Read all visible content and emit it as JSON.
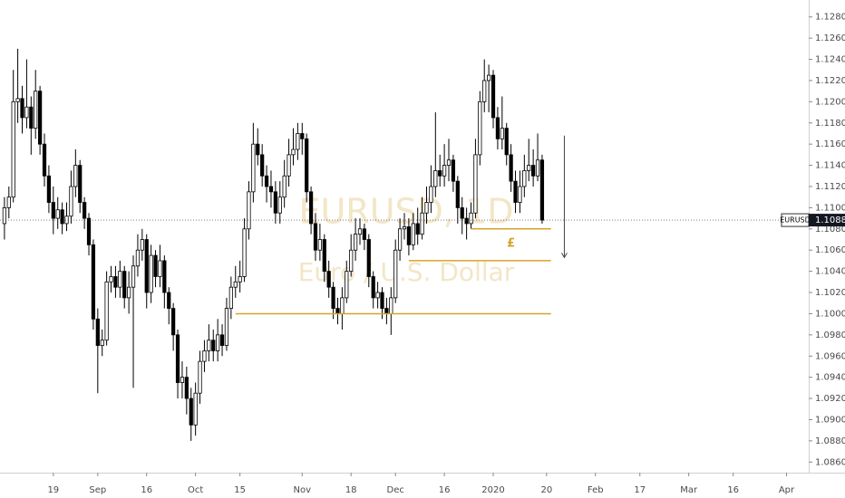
{
  "chart_data": {
    "type": "candlestick",
    "title": "EURUSD, 1D",
    "subtitle": "Euro / U.S. Dollar",
    "symbol": "EURUSD",
    "up_color": "#ffffff",
    "down_color": "#000000",
    "edge_color": "#000000",
    "grid": false,
    "xlim": [
      -1,
      181
    ],
    "ylim": [
      1.085,
      1.1296
    ],
    "xticks": [
      {
        "value": 11,
        "label": "19"
      },
      {
        "value": 21,
        "label": "Sep"
      },
      {
        "value": 32,
        "label": "16"
      },
      {
        "value": 43,
        "label": "Oct"
      },
      {
        "value": 53,
        "label": "15"
      },
      {
        "value": 67,
        "label": "Nov"
      },
      {
        "value": 78,
        "label": "18"
      },
      {
        "value": 88,
        "label": "Dec"
      },
      {
        "value": 99,
        "label": "16"
      },
      {
        "value": 110,
        "label": "2020"
      },
      {
        "value": 122,
        "label": "20"
      },
      {
        "value": 133,
        "label": "Feb"
      },
      {
        "value": 143,
        "label": "17"
      },
      {
        "value": 154,
        "label": "Mar"
      },
      {
        "value": 164,
        "label": "16"
      },
      {
        "value": 176,
        "label": "Apr"
      }
    ],
    "yticks": [
      {
        "value": 1.086,
        "label": "1.08600"
      },
      {
        "value": 1.088,
        "label": "1.08800"
      },
      {
        "value": 1.09,
        "label": "1.09000"
      },
      {
        "value": 1.092,
        "label": "1.09200"
      },
      {
        "value": 1.094,
        "label": "1.09400"
      },
      {
        "value": 1.096,
        "label": "1.09600"
      },
      {
        "value": 1.098,
        "label": "1.09800"
      },
      {
        "value": 1.1,
        "label": "1.10000"
      },
      {
        "value": 1.102,
        "label": "1.10200"
      },
      {
        "value": 1.104,
        "label": "1.10400"
      },
      {
        "value": 1.106,
        "label": "1.10600"
      },
      {
        "value": 1.108,
        "label": "1.10800"
      },
      {
        "value": 1.11,
        "label": "1.11000"
      },
      {
        "value": 1.112,
        "label": "1.11200"
      },
      {
        "value": 1.114,
        "label": "1.11400"
      },
      {
        "value": 1.116,
        "label": "1.11600"
      },
      {
        "value": 1.118,
        "label": "1.11800"
      },
      {
        "value": 1.12,
        "label": "1.12000"
      },
      {
        "value": 1.122,
        "label": "1.12200"
      },
      {
        "value": 1.124,
        "label": "1.12400"
      },
      {
        "value": 1.126,
        "label": "1.12600"
      },
      {
        "value": 1.128,
        "label": "1.12800"
      }
    ],
    "open": [
      1.1085,
      1.11,
      1.111,
      1.12,
      1.1203,
      1.1185,
      1.1195,
      1.1175,
      1.121,
      1.116,
      1.113,
      1.1105,
      1.109,
      1.1098,
      1.1085,
      1.1092,
      1.112,
      1.114,
      1.1105,
      1.109,
      1.1065,
      1.0995,
      1.097,
      1.0975,
      1.103,
      1.1035,
      1.1025,
      1.104,
      1.1015,
      1.1025,
      1.1045,
      1.106,
      1.107,
      1.102,
      1.1055,
      1.1035,
      1.105,
      1.102,
      1.1005,
      1.098,
      1.0935,
      1.094,
      1.092,
      1.0895,
      1.0925,
      1.0955,
      1.0965,
      1.0975,
      1.0965,
      1.098,
      1.097,
      1.1005,
      1.1025,
      1.103,
      1.1035,
      1.108,
      1.1115,
      1.116,
      1.115,
      1.113,
      1.112,
      1.1115,
      1.1095,
      1.111,
      1.113,
      1.115,
      1.1155,
      1.117,
      1.1165,
      1.1115,
      1.1085,
      1.106,
      1.107,
      1.104,
      1.1025,
      1.1005,
      1.1,
      1.1015,
      1.104,
      1.106,
      1.1075,
      1.108,
      1.107,
      1.1035,
      1.1015,
      1.102,
      1.1005,
      1.1,
      1.1015,
      1.106,
      1.108,
      1.1082,
      1.1065,
      1.1085,
      1.1075,
      1.1095,
      1.1105,
      1.112,
      1.1135,
      1.113,
      1.114,
      1.1145,
      1.1125,
      1.11,
      1.109,
      1.1085,
      1.1095,
      1.115,
      1.12,
      1.122,
      1.1225,
      1.1185,
      1.1165,
      1.1175,
      1.115,
      1.1125,
      1.1105,
      1.112,
      1.1135,
      1.114,
      1.113,
      1.1145
    ],
    "high": [
      1.111,
      1.112,
      1.123,
      1.125,
      1.1215,
      1.124,
      1.1205,
      1.123,
      1.1215,
      1.117,
      1.114,
      1.112,
      1.111,
      1.1105,
      1.1105,
      1.1135,
      1.1155,
      1.1145,
      1.111,
      1.1095,
      1.107,
      1.1005,
      1.0985,
      1.104,
      1.1045,
      1.1045,
      1.105,
      1.1045,
      1.104,
      1.1055,
      1.1075,
      1.108,
      1.1075,
      1.1065,
      1.106,
      1.1065,
      1.1055,
      1.1025,
      1.101,
      1.0985,
      1.0955,
      1.095,
      1.093,
      1.0935,
      1.0965,
      1.0975,
      1.099,
      1.0985,
      1.0995,
      1.099,
      1.1015,
      1.1035,
      1.1045,
      1.105,
      1.109,
      1.1125,
      1.118,
      1.1175,
      1.116,
      1.114,
      1.1135,
      1.1125,
      1.1125,
      1.1145,
      1.1165,
      1.1175,
      1.118,
      1.118,
      1.117,
      1.112,
      1.1095,
      1.1085,
      1.1075,
      1.105,
      1.103,
      1.1015,
      1.1025,
      1.105,
      1.1075,
      1.109,
      1.109,
      1.1085,
      1.1075,
      1.104,
      1.103,
      1.1025,
      1.1015,
      1.1025,
      1.107,
      1.109,
      1.1095,
      1.109,
      1.1095,
      1.11,
      1.111,
      1.112,
      1.114,
      1.119,
      1.115,
      1.116,
      1.1165,
      1.115,
      1.113,
      1.111,
      1.11,
      1.1105,
      1.1165,
      1.121,
      1.124,
      1.1235,
      1.123,
      1.1195,
      1.1205,
      1.118,
      1.116,
      1.1135,
      1.1135,
      1.115,
      1.1165,
      1.1155,
      1.117,
      1.115
    ],
    "low": [
      1.107,
      1.109,
      1.1105,
      1.118,
      1.117,
      1.1175,
      1.115,
      1.1165,
      1.115,
      1.112,
      1.1095,
      1.1075,
      1.108,
      1.1075,
      1.1078,
      1.1085,
      1.111,
      1.1095,
      1.108,
      1.1055,
      1.0985,
      1.0925,
      1.096,
      1.097,
      1.102,
      1.1015,
      1.1015,
      1.1005,
      1.1,
      1.093,
      1.1035,
      1.105,
      1.1005,
      1.101,
      1.1025,
      1.1025,
      1.1005,
      1.099,
      1.0965,
      1.092,
      1.092,
      1.0905,
      1.088,
      1.0885,
      1.0915,
      1.0945,
      1.0955,
      1.0955,
      1.0955,
      1.096,
      1.0965,
      1.0995,
      1.1015,
      1.102,
      1.103,
      1.107,
      1.1105,
      1.114,
      1.112,
      1.1105,
      1.11,
      1.1085,
      1.1085,
      1.11,
      1.112,
      1.114,
      1.1145,
      1.115,
      1.1105,
      1.1075,
      1.105,
      1.105,
      1.103,
      1.1015,
      1.0995,
      1.099,
      1.0985,
      1.101,
      1.1035,
      1.105,
      1.1065,
      1.106,
      1.1025,
      1.1005,
      1.1005,
      1.0995,
      1.099,
      1.098,
      1.101,
      1.105,
      1.107,
      1.1055,
      1.106,
      1.1065,
      1.107,
      1.1085,
      1.1095,
      1.111,
      1.112,
      1.112,
      1.1125,
      1.1115,
      1.1085,
      1.1075,
      1.107,
      1.108,
      1.109,
      1.114,
      1.119,
      1.119,
      1.1175,
      1.1155,
      1.1155,
      1.114,
      1.1115,
      1.1095,
      1.1095,
      1.111,
      1.1125,
      1.112,
      1.1125,
      1.1085
    ],
    "close": [
      1.11,
      1.111,
      1.12,
      1.1203,
      1.1185,
      1.1195,
      1.1175,
      1.121,
      1.116,
      1.113,
      1.1105,
      1.109,
      1.1098,
      1.1085,
      1.1092,
      1.112,
      1.114,
      1.1105,
      1.109,
      1.1065,
      1.0995,
      1.097,
      1.0975,
      1.103,
      1.1035,
      1.1025,
      1.104,
      1.1015,
      1.1025,
      1.1045,
      1.106,
      1.107,
      1.102,
      1.1055,
      1.1035,
      1.105,
      1.102,
      1.1005,
      1.098,
      1.0935,
      1.094,
      1.092,
      1.0895,
      1.0925,
      1.0955,
      1.0965,
      1.0975,
      1.0965,
      1.098,
      1.097,
      1.1005,
      1.1025,
      1.103,
      1.1035,
      1.108,
      1.1115,
      1.116,
      1.115,
      1.113,
      1.112,
      1.1115,
      1.1095,
      1.111,
      1.113,
      1.115,
      1.1155,
      1.117,
      1.1165,
      1.1115,
      1.1085,
      1.106,
      1.107,
      1.104,
      1.1025,
      1.1005,
      1.1,
      1.1015,
      1.104,
      1.106,
      1.1075,
      1.108,
      1.107,
      1.1035,
      1.1015,
      1.102,
      1.1005,
      1.1,
      1.1015,
      1.106,
      1.108,
      1.1082,
      1.1065,
      1.1085,
      1.1075,
      1.1095,
      1.1105,
      1.112,
      1.1135,
      1.113,
      1.114,
      1.1145,
      1.1125,
      1.11,
      1.109,
      1.1085,
      1.1095,
      1.115,
      1.12,
      1.122,
      1.1225,
      1.1185,
      1.1165,
      1.1175,
      1.115,
      1.1125,
      1.1105,
      1.112,
      1.1135,
      1.114,
      1.113,
      1.1145,
      1.10883
    ],
    "drawing_color": "#d4a42a",
    "levels": [
      {
        "value": 1.1,
        "start": 52,
        "end": 123
      },
      {
        "value": 1.105,
        "start": 91,
        "end": 123
      },
      {
        "value": 1.108,
        "start": 105,
        "end": 123
      }
    ],
    "arrow": {
      "x": 126,
      "from": 1.1168,
      "to": 1.1053
    },
    "note": {
      "text": "£",
      "x": 114,
      "value": 1.1066
    }
  }
}
